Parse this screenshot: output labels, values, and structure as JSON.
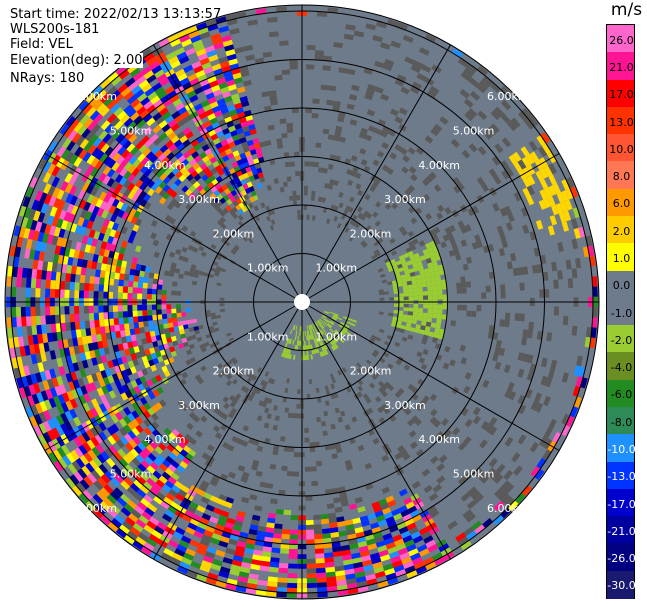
{
  "info": {
    "start_time": "Start time: 2022/02/13 13:13:57",
    "instrument": "WLS200s-181",
    "field": "Field: VEL",
    "elevation": "Elevation(deg): 2.00",
    "nrays": "NRays: 180"
  },
  "range_labels": [
    "1.00km",
    "2.00km",
    "3.00km",
    "4.00km",
    "5.00km",
    "6.00km"
  ],
  "colorbar": {
    "unit": "m/s",
    "ticks": [
      "26.0",
      "21.0",
      "17.0",
      "13.0",
      "10.0",
      "8.0",
      "6.0",
      "2.0",
      "1.0",
      "0.0",
      "-1.0",
      "-2.0",
      "-4.0",
      "-6.0",
      "-8.0",
      "-10.0",
      "-13.0",
      "-17.0",
      "-21.0",
      "-26.0",
      "-30.0"
    ],
    "colors": [
      "#ff66cc",
      "#ff1493",
      "#ff0000",
      "#ff3300",
      "#ff5533",
      "#ff7755",
      "#ff9900",
      "#ffcc00",
      "#ffff00",
      "#6d7b8d",
      "#6d7b8d",
      "#9acd32",
      "#6b8e23",
      "#228b22",
      "#2e8b57",
      "#1e90ff",
      "#0033ff",
      "#0000cc",
      "#0000a0",
      "#000080",
      "#191970"
    ]
  },
  "palette": {
    "background_gray": "#6e7b8b",
    "dark_gray": "#5a5a5a",
    "green": "#9acd32",
    "yellow": "#ffd700"
  }
}
